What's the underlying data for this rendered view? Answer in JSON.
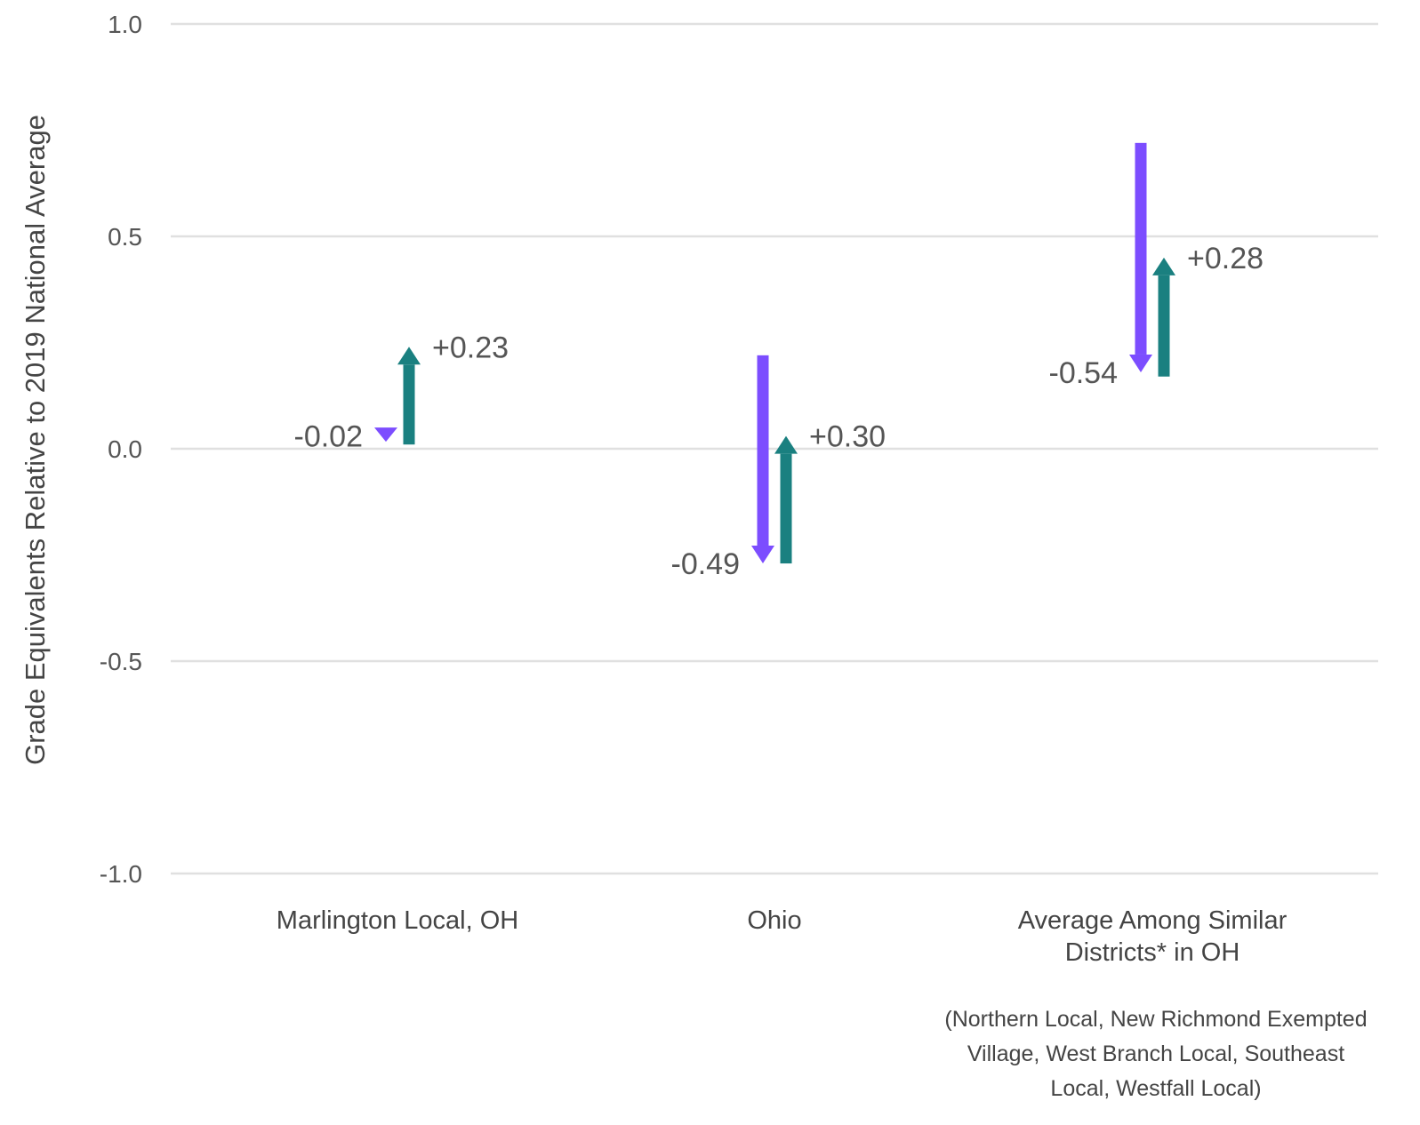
{
  "chart_data": {
    "type": "arrow",
    "ylabel": "Grade Equivalents Relative to 2019 National Average",
    "ylim": [
      -1.0,
      1.0
    ],
    "yticks": [
      1.0,
      0.5,
      0.0,
      -0.5,
      -1.0
    ],
    "ytick_labels": [
      "1.0",
      "0.5",
      "0.0",
      "-0.5",
      "-1.0"
    ],
    "grid": true,
    "colors": {
      "decline": "#7c4dff",
      "recovery": "#1a8080",
      "grid": "#e0e0e0"
    },
    "groups": [
      {
        "label_lines": [
          "Marlington Local, OH"
        ],
        "decline": {
          "from": 0.05,
          "to": 0.03,
          "label": "-0.02"
        },
        "recovery": {
          "from": 0.01,
          "to": 0.24,
          "label": "+0.23"
        }
      },
      {
        "label_lines": [
          "Ohio"
        ],
        "decline": {
          "from": 0.22,
          "to": -0.27,
          "label": "-0.49"
        },
        "recovery": {
          "from": -0.27,
          "to": 0.03,
          "label": "+0.30"
        }
      },
      {
        "label_lines": [
          "Average Among Similar",
          "Districts* in OH"
        ],
        "decline": {
          "from": 0.72,
          "to": 0.18,
          "label": "-0.54"
        },
        "recovery": {
          "from": 0.17,
          "to": 0.45,
          "label": "+0.28"
        }
      }
    ],
    "footnote_lines": [
      "(Northern Local, New Richmond Exempted",
      "Village, West Branch Local, Southeast",
      "Local, Westfall Local)"
    ]
  }
}
